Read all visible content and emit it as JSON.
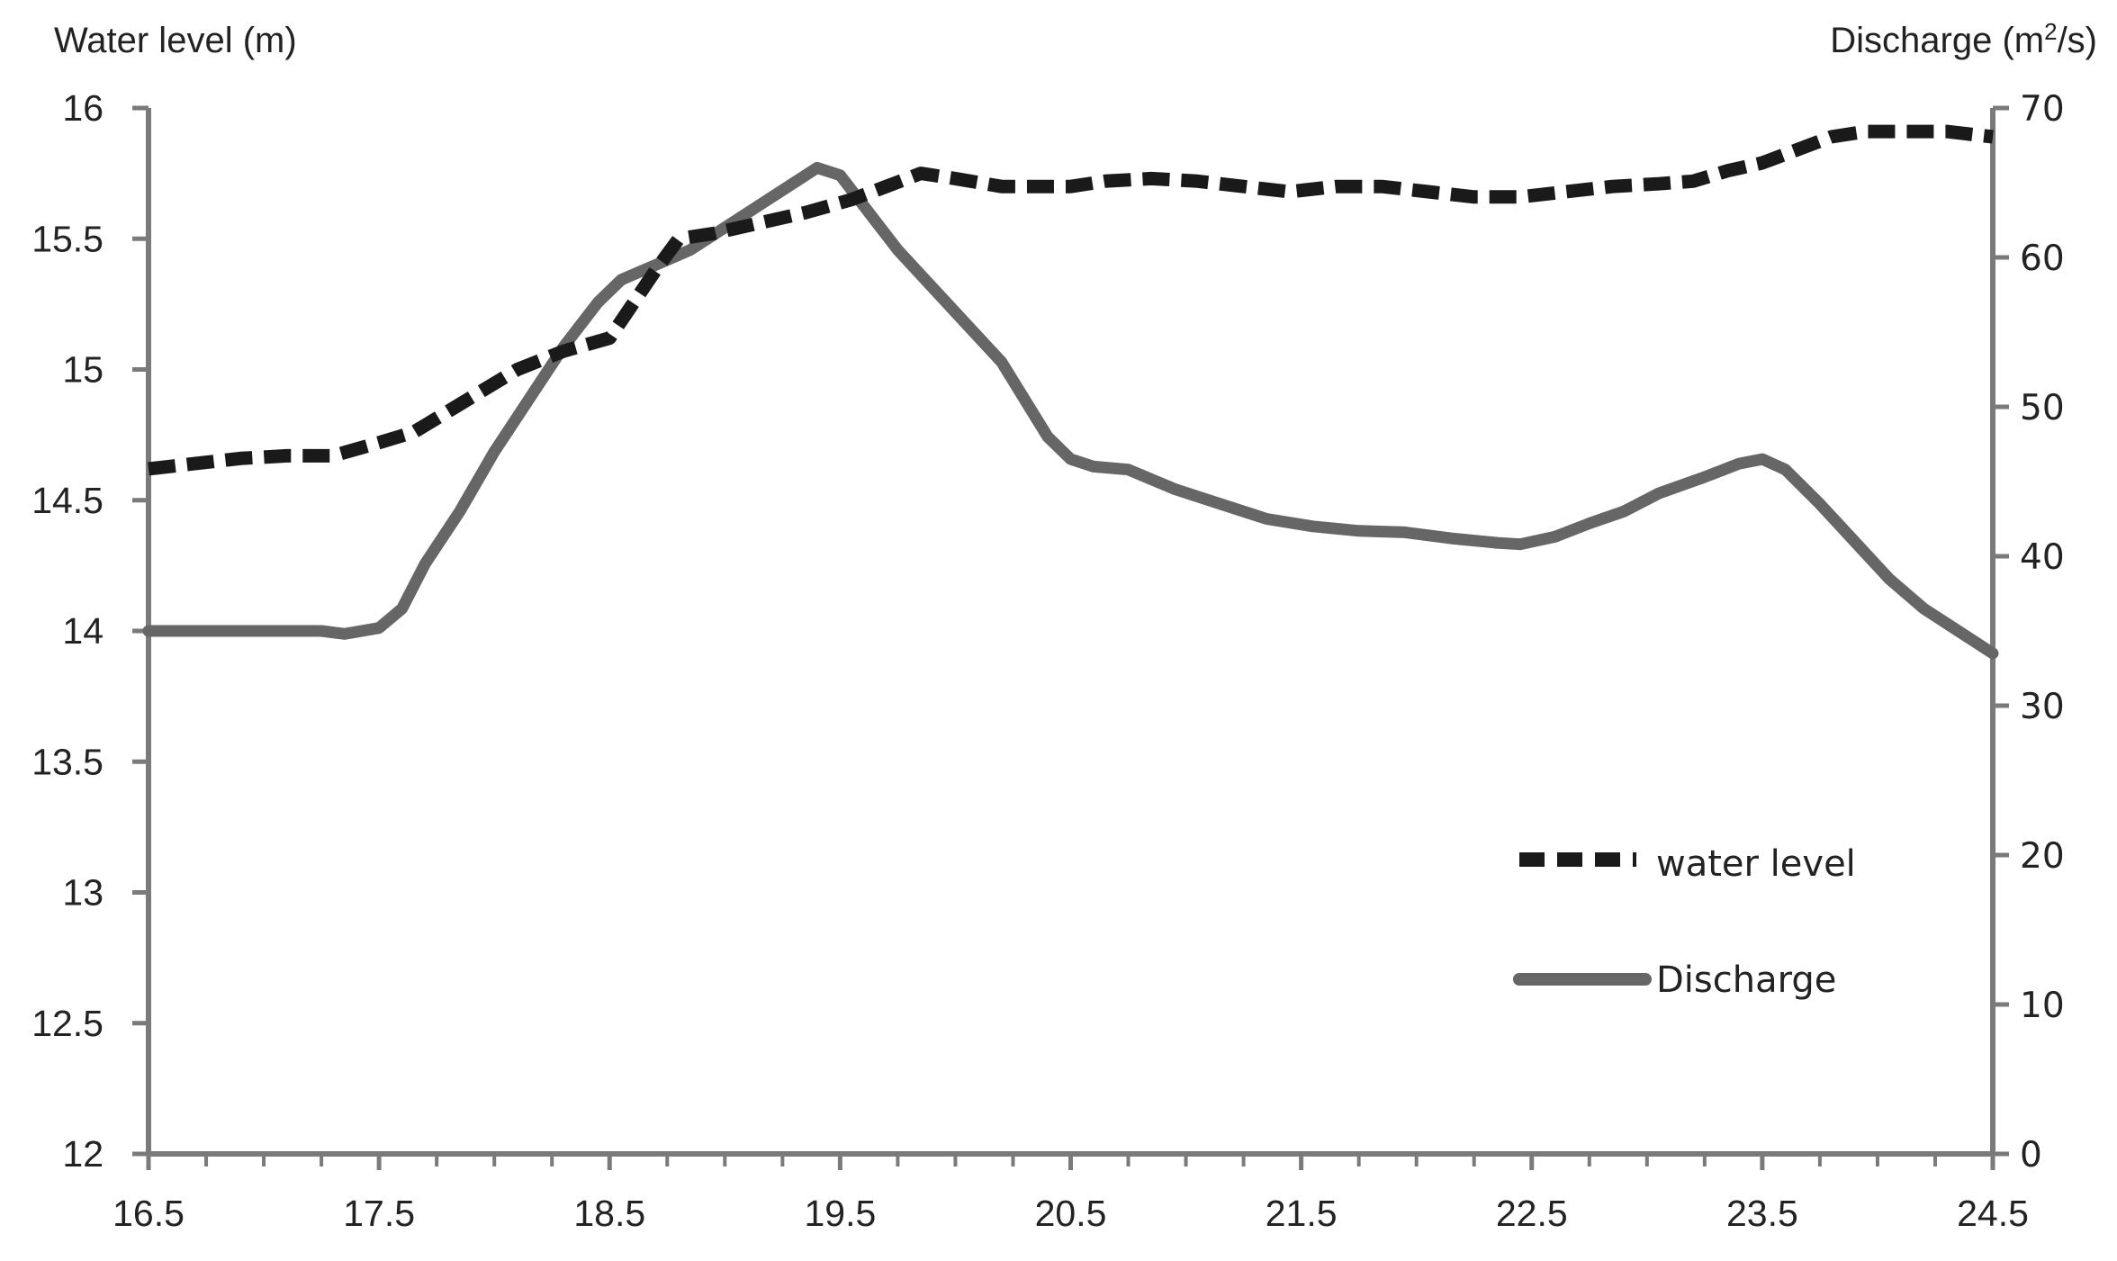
{
  "chart_data": {
    "type": "line",
    "y_left_label": "Water level (m)",
    "y_right_label_main": "Discharge (m",
    "y_right_label_sup": "2",
    "y_right_label_end": "/s)",
    "x_ticks": [
      "16.5",
      "17.5",
      "18.5",
      "19.5",
      "20.5",
      "21.5",
      "22.5",
      "23.5",
      "24.5"
    ],
    "x_range": [
      16.5,
      24.5
    ],
    "y_left_ticks": [
      "12",
      "12.5",
      "13",
      "13.5",
      "14",
      "14.5",
      "15",
      "15.5",
      "16"
    ],
    "y_left_range": [
      12,
      16
    ],
    "y_right_ticks": [
      "0",
      "10",
      "20",
      "30",
      "40",
      "50",
      "60",
      "70"
    ],
    "y_right_range": [
      0,
      70
    ],
    "grid": false,
    "legend_position": "middle-right",
    "series": [
      {
        "name": "water level",
        "axis": "left",
        "style": "dashed",
        "color": "#1a1a1a",
        "x": [
          16.5,
          16.7,
          16.9,
          17.1,
          17.3,
          17.5,
          17.65,
          17.8,
          17.95,
          18.1,
          18.3,
          18.5,
          18.6,
          18.7,
          18.8,
          18.95,
          19.15,
          19.35,
          19.55,
          19.7,
          19.85,
          20.0,
          20.2,
          20.4,
          20.5,
          20.65,
          20.85,
          21.05,
          21.25,
          21.45,
          21.65,
          21.85,
          22.05,
          22.25,
          22.45,
          22.65,
          22.85,
          23.05,
          23.2,
          23.35,
          23.5,
          23.65,
          23.8,
          23.95,
          24.1,
          24.3,
          24.5
        ],
        "values": [
          14.62,
          14.64,
          14.66,
          14.67,
          14.67,
          14.72,
          14.76,
          14.84,
          14.92,
          15.0,
          15.07,
          15.12,
          15.25,
          15.38,
          15.5,
          15.52,
          15.56,
          15.6,
          15.65,
          15.7,
          15.75,
          15.73,
          15.7,
          15.7,
          15.7,
          15.72,
          15.73,
          15.72,
          15.7,
          15.68,
          15.7,
          15.7,
          15.68,
          15.66,
          15.66,
          15.68,
          15.7,
          15.71,
          15.72,
          15.76,
          15.79,
          15.84,
          15.89,
          15.91,
          15.91,
          15.91,
          15.89
        ]
      },
      {
        "name": "Discharge",
        "axis": "right",
        "style": "solid",
        "color": "#666666",
        "x": [
          16.5,
          16.7,
          16.9,
          17.1,
          17.25,
          17.35,
          17.5,
          17.6,
          17.7,
          17.85,
          18.0,
          18.15,
          18.3,
          18.45,
          18.55,
          18.7,
          18.85,
          19.0,
          19.15,
          19.3,
          19.4,
          19.5,
          19.6,
          19.75,
          19.9,
          20.05,
          20.2,
          20.3,
          20.4,
          20.5,
          20.6,
          20.75,
          20.95,
          21.15,
          21.35,
          21.55,
          21.75,
          21.95,
          22.15,
          22.35,
          22.45,
          22.6,
          22.75,
          22.9,
          23.05,
          23.25,
          23.4,
          23.5,
          23.6,
          23.75,
          23.9,
          24.05,
          24.2,
          24.35,
          24.5
        ],
        "values": [
          35,
          35,
          35,
          35,
          35,
          34.8,
          35.2,
          36.5,
          39.5,
          43,
          47,
          50.5,
          54,
          57,
          58.5,
          59.5,
          60.5,
          62,
          63.5,
          65,
          66,
          65.5,
          63.5,
          60.5,
          58,
          55.5,
          53,
          50.5,
          48,
          46.5,
          46,
          45.8,
          44.5,
          43.5,
          42.5,
          42,
          41.7,
          41.6,
          41.2,
          40.9,
          40.8,
          41.3,
          42.2,
          43,
          44.2,
          45.3,
          46.2,
          46.5,
          45.8,
          43.5,
          41,
          38.5,
          36.5,
          35,
          33.5
        ]
      }
    ]
  }
}
